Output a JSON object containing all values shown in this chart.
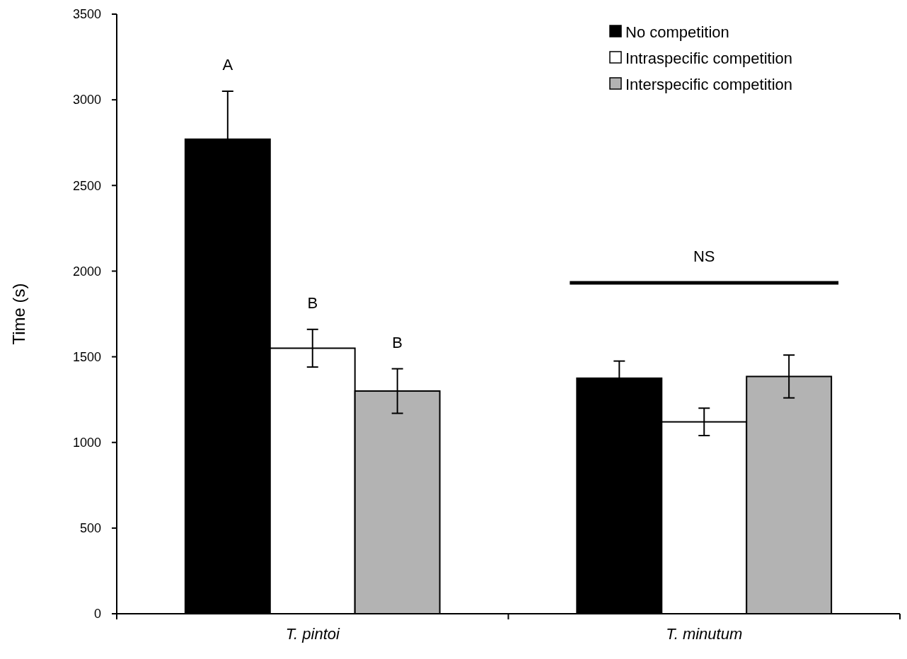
{
  "chart_data": {
    "type": "bar",
    "ylabel": "Time (s)",
    "categories": [
      "T. pintoi",
      "T. minutum"
    ],
    "series": [
      {
        "name": "No competition",
        "color": "#000000",
        "values": [
          2770,
          1375
        ],
        "errors": [
          280,
          100
        ]
      },
      {
        "name": "Intraspecific competition",
        "color": "#ffffff",
        "values": [
          1550,
          1120
        ],
        "errors": [
          110,
          80
        ]
      },
      {
        "name": "Interspecific competition",
        "color": "#b3b3b3",
        "values": [
          1300,
          1385
        ],
        "errors": [
          130,
          125
        ]
      }
    ],
    "ylim": [
      0,
      3500
    ],
    "yticks": [
      0,
      500,
      1000,
      1500,
      2000,
      2500,
      3000,
      3500
    ],
    "grid": false,
    "legend": "top right",
    "annotations": [
      "A",
      "B",
      "B",
      "NS"
    ]
  }
}
